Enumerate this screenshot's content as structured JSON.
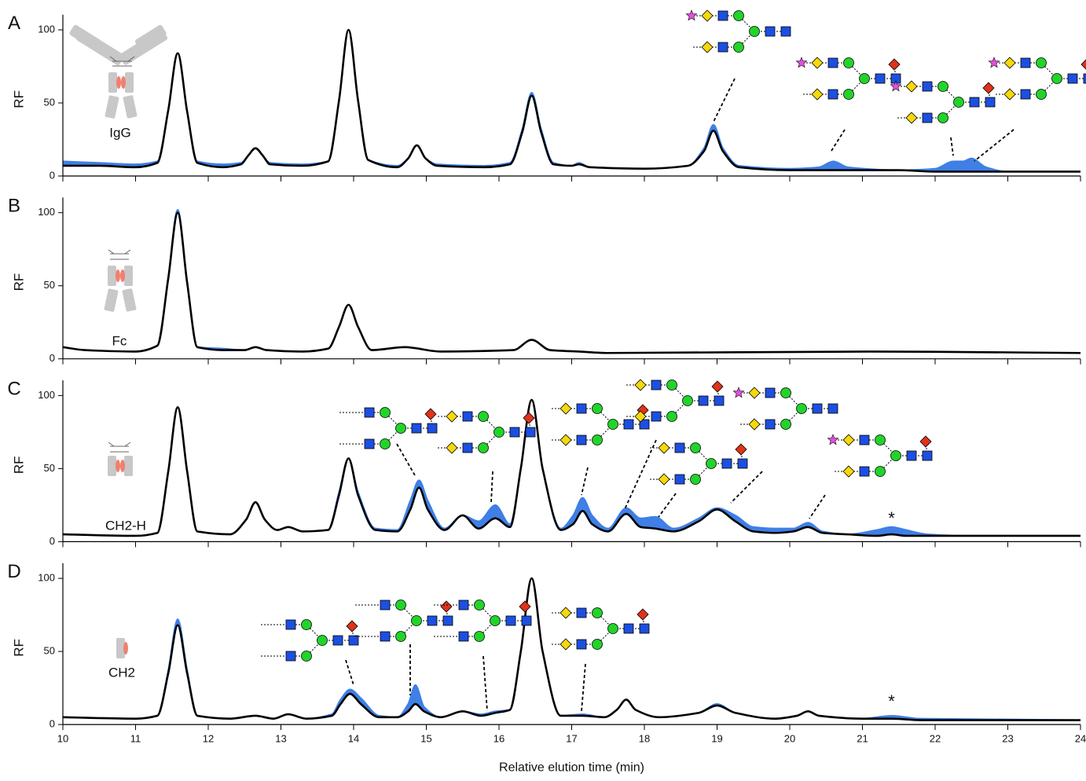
{
  "chart_data": [
    {
      "type": "line",
      "panel": "A",
      "label": "IgG",
      "ylabel": "RF",
      "xlim": [
        10,
        24
      ],
      "xticks": [
        10,
        11,
        12,
        13,
        14,
        15,
        16,
        17,
        18,
        19,
        20,
        21,
        22,
        23,
        24
      ],
      "ylim": [
        0,
        105
      ],
      "yticks": [
        0,
        50,
        100
      ],
      "x": [
        10,
        10.5,
        11,
        11.3,
        11.45,
        11.58,
        11.71,
        11.85,
        12.2,
        12.45,
        12.55,
        12.65,
        12.75,
        12.85,
        13.3,
        13.65,
        13.8,
        13.93,
        14.06,
        14.2,
        14.6,
        14.75,
        14.87,
        14.99,
        15.15,
        15.8,
        16.15,
        16.32,
        16.45,
        16.58,
        16.75,
        17.0,
        17.1,
        17.25,
        18.0,
        18.6,
        18.82,
        18.95,
        19.08,
        19.3,
        20.0,
        20.4,
        20.6,
        20.8,
        21.5,
        22.0,
        22.25,
        22.38,
        22.5,
        22.7,
        23.0,
        24
      ],
      "series": [
        {
          "color": "#3f7fe6",
          "fill": "#3f7fe6",
          "values": [
            10,
            9,
            8,
            10,
            45,
            84,
            44,
            10,
            8,
            9,
            14,
            19,
            14,
            9,
            8,
            10,
            52,
            100,
            52,
            11,
            7,
            12,
            21,
            12,
            8,
            7,
            9,
            32,
            57,
            32,
            9,
            7,
            9,
            6,
            5,
            7,
            19,
            35,
            19,
            7,
            5,
            6,
            10,
            6,
            4,
            5,
            10,
            10,
            12,
            6,
            3,
            3
          ]
        },
        {
          "color": "#000000",
          "fill": "#ffffff",
          "values": [
            7,
            7,
            6,
            9,
            45,
            84,
            44,
            9,
            6,
            8,
            14,
            19,
            14,
            8,
            7,
            10,
            52,
            100,
            52,
            11,
            6,
            12,
            21,
            12,
            7,
            6,
            8,
            30,
            55,
            30,
            8,
            7,
            8,
            6,
            5,
            7,
            17,
            31,
            17,
            6,
            4,
            4,
            4,
            4,
            4,
            3,
            3,
            3,
            3,
            3,
            3,
            3
          ]
        }
      ]
    },
    {
      "type": "line",
      "panel": "B",
      "label": "Fc",
      "ylabel": "RF",
      "xlim": [
        10,
        24
      ],
      "xticks": [
        10,
        11,
        12,
        13,
        14,
        15,
        16,
        17,
        18,
        19,
        20,
        21,
        22,
        23,
        24
      ],
      "ylim": [
        0,
        105
      ],
      "yticks": [
        0,
        50,
        100
      ],
      "x": [
        10,
        10.3,
        11,
        11.3,
        11.45,
        11.58,
        11.71,
        11.85,
        12.2,
        12.5,
        12.65,
        12.8,
        13.3,
        13.65,
        13.8,
        13.93,
        14.06,
        14.25,
        14.7,
        15.2,
        16.2,
        16.45,
        16.7,
        17.1,
        17.5,
        21.1,
        24
      ],
      "series": [
        {
          "color": "#3f7fe6",
          "fill": "#3f7fe6",
          "values": [
            8,
            6,
            5,
            9,
            56,
            102,
            53,
            8,
            7,
            6,
            8,
            6,
            5,
            7,
            22,
            37,
            22,
            6,
            8,
            5,
            6,
            13,
            6,
            5,
            4,
            5,
            4
          ]
        },
        {
          "color": "#000000",
          "fill": "#ffffff",
          "values": [
            8,
            6,
            5,
            9,
            55,
            100,
            52,
            8,
            6,
            6,
            8,
            6,
            5,
            7,
            22,
            37,
            22,
            6,
            8,
            5,
            6,
            13,
            6,
            5,
            4,
            5,
            4
          ]
        }
      ]
    },
    {
      "type": "line",
      "panel": "C",
      "label": "CH2-H",
      "ylabel": "RF",
      "annotations": [
        "*"
      ],
      "xlim": [
        10,
        24
      ],
      "xticks": [
        10,
        11,
        12,
        13,
        14,
        15,
        16,
        17,
        18,
        19,
        20,
        21,
        22,
        23,
        24
      ],
      "ylim": [
        0,
        105
      ],
      "yticks": [
        0,
        50,
        100
      ],
      "x": [
        10,
        11,
        11.3,
        11.45,
        11.58,
        11.71,
        11.85,
        12.3,
        12.52,
        12.65,
        12.78,
        12.95,
        13.1,
        13.3,
        13.65,
        13.8,
        13.93,
        14.06,
        14.3,
        14.6,
        14.78,
        14.9,
        15.02,
        15.25,
        15.5,
        15.72,
        15.95,
        16.15,
        16.3,
        16.45,
        16.6,
        16.85,
        17.02,
        17.15,
        17.28,
        17.5,
        17.75,
        17.95,
        18.15,
        18.4,
        18.75,
        19.0,
        19.25,
        19.5,
        19.8,
        20.05,
        20.25,
        20.45,
        20.8,
        21.2,
        21.4,
        21.6,
        21.9,
        22.5,
        24
      ],
      "series": [
        {
          "color": "#3f7fe6",
          "fill": "#3f7fe6",
          "values": [
            5,
            4,
            6,
            48,
            92,
            48,
            7,
            5,
            15,
            27,
            15,
            8,
            10,
            7,
            8,
            34,
            57,
            34,
            9,
            8,
            28,
            42,
            28,
            9,
            18,
            14,
            25,
            12,
            50,
            97,
            50,
            9,
            18,
            30,
            18,
            9,
            23,
            16,
            17,
            9,
            16,
            23,
            18,
            10,
            9,
            9,
            13,
            7,
            5,
            8,
            10,
            8,
            5,
            4,
            4
          ]
        },
        {
          "color": "#000000",
          "fill": "#ffffff",
          "values": [
            5,
            4,
            6,
            48,
            92,
            48,
            7,
            5,
            15,
            27,
            15,
            8,
            10,
            7,
            8,
            32,
            57,
            32,
            8,
            7,
            22,
            37,
            22,
            8,
            18,
            9,
            16,
            10,
            50,
            97,
            50,
            8,
            12,
            21,
            12,
            7,
            19,
            10,
            9,
            7,
            14,
            22,
            14,
            7,
            6,
            7,
            10,
            6,
            5,
            4,
            5,
            4,
            4,
            4,
            4
          ]
        }
      ]
    },
    {
      "type": "line",
      "panel": "D",
      "label": "CH2",
      "ylabel": "RF",
      "xlabel": "Relative elution time (min)",
      "annotations": [
        "*"
      ],
      "xlim": [
        10,
        24
      ],
      "xticks": [
        10,
        11,
        12,
        13,
        14,
        15,
        16,
        17,
        18,
        19,
        20,
        21,
        22,
        23,
        24
      ],
      "ylim": [
        0,
        105
      ],
      "yticks": [
        0,
        50,
        100
      ],
      "x": [
        10,
        11,
        11.3,
        11.45,
        11.58,
        11.71,
        11.85,
        12.3,
        12.65,
        12.9,
        13.1,
        13.35,
        13.7,
        13.82,
        13.95,
        14.1,
        14.35,
        14.6,
        14.75,
        14.85,
        14.97,
        15.2,
        15.5,
        15.75,
        15.95,
        16.15,
        16.3,
        16.45,
        16.6,
        16.85,
        17.15,
        17.45,
        17.62,
        17.75,
        17.88,
        18.2,
        18.75,
        19.0,
        19.25,
        19.8,
        20.1,
        20.25,
        20.4,
        21.0,
        21.4,
        21.8,
        24
      ],
      "series": [
        {
          "color": "#3f7fe6",
          "fill": "#3f7fe6",
          "values": [
            5,
            4,
            6,
            37,
            72,
            37,
            6,
            4,
            6,
            4,
            7,
            4,
            7,
            17,
            24,
            18,
            6,
            5,
            14,
            27,
            12,
            5,
            9,
            7,
            9,
            10,
            50,
            100,
            50,
            6,
            7,
            5,
            10,
            17,
            10,
            5,
            8,
            14,
            8,
            4,
            6,
            9,
            6,
            4,
            6,
            4,
            3
          ]
        },
        {
          "color": "#000000",
          "fill": "#ffffff",
          "values": [
            5,
            4,
            6,
            35,
            68,
            35,
            6,
            4,
            6,
            4,
            7,
            4,
            6,
            14,
            21,
            14,
            5,
            5,
            9,
            14,
            9,
            5,
            9,
            6,
            8,
            10,
            50,
            100,
            50,
            6,
            6,
            5,
            10,
            17,
            10,
            5,
            8,
            13,
            8,
            4,
            6,
            9,
            6,
            4,
            4,
            3,
            3
          ]
        }
      ]
    }
  ]
}
